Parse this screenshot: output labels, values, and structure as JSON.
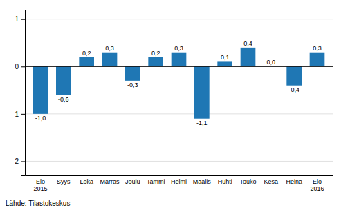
{
  "chart_data": {
    "type": "bar",
    "categories": [
      "Elo\n2015",
      "Syys",
      "Loka",
      "Marras",
      "Joulu",
      "Tammi",
      "Helmi",
      "Maalis",
      "Huhti",
      "Touko",
      "Kesä",
      "Heinä",
      "Elo\n2016"
    ],
    "values": [
      -1.0,
      -0.6,
      0.2,
      0.3,
      -0.3,
      0.2,
      0.3,
      -1.1,
      0.1,
      0.4,
      0.0,
      -0.4,
      0.3
    ],
    "value_labels": [
      "-1,0",
      "-0,6",
      "0,2",
      "0,3",
      "-0,3",
      "0,2",
      "0,3",
      "-1,1",
      "0,1",
      "0,4",
      "0,0",
      "-0,4",
      "0,3"
    ],
    "data_labels": true,
    "color": "#1F77B4",
    "ylim": [
      -2.3,
      1.2
    ],
    "yticks": [
      -2,
      -1,
      0,
      1
    ],
    "grid": true,
    "source": "Lähde: Tilastokeskus"
  }
}
